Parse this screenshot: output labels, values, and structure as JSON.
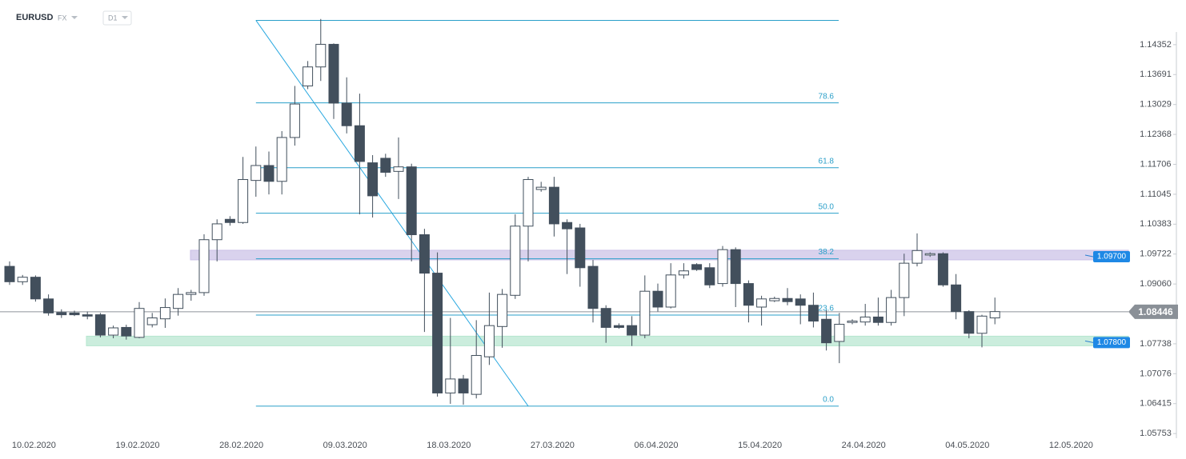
{
  "header": {
    "symbol": "EURUSD",
    "market": "FX",
    "interval": "D1"
  },
  "chart_data": {
    "type": "candlestick",
    "categories": [
      null,
      null,
      "10.02.2020",
      null,
      null,
      null,
      null,
      null,
      null,
      null,
      "19.02.2020",
      null,
      null,
      null,
      null,
      null,
      null,
      null,
      "28.02.2020",
      null,
      null,
      null,
      null,
      null,
      null,
      null,
      "09.03.2020",
      null,
      null,
      null,
      null,
      null,
      null,
      null,
      "18.03.2020",
      null,
      null,
      null,
      null,
      null,
      null,
      null,
      "27.03.2020",
      null,
      null,
      null,
      null,
      null,
      null,
      null,
      "06.04.2020",
      null,
      null,
      null,
      null,
      null,
      null,
      null,
      "15.04.2020",
      null,
      null,
      null,
      null,
      null,
      null,
      null,
      "24.04.2020",
      null,
      null,
      null,
      null,
      null,
      null,
      null,
      "04.05.2020",
      null,
      null,
      null,
      null,
      null,
      null,
      null,
      "12.05.2020"
    ],
    "open": [
      1.0945,
      1.0911,
      1.0921,
      1.0873,
      1.0843,
      1.0842,
      1.0838,
      1.0838,
      1.0793,
      1.081,
      1.0788,
      1.0816,
      1.0829,
      1.0852,
      1.0883,
      1.0887,
      1.1004,
      1.1049,
      1.1042,
      1.1135,
      1.1168,
      1.1133,
      1.123,
      1.1344,
      1.1386,
      1.1436,
      1.1306,
      1.1256,
      1.1174,
      1.1184,
      1.1155,
      1.1165,
      1.1015,
      1.093,
      1.0665,
      1.0696,
      1.0662,
      1.0745,
      1.0812,
      1.0881,
      1.1034,
      1.1115,
      1.112,
      1.1042,
      1.103,
      1.0945,
      1.0852,
      1.0814,
      1.0814,
      1.0793,
      1.089,
      1.0855,
      1.0926,
      1.0949,
      1.0942,
      1.0907,
      1.0982,
      1.0907,
      1.0855,
      1.0869,
      1.0874,
      1.0873,
      1.0859,
      1.0828,
      1.0779,
      1.0821,
      1.0822,
      1.0833,
      1.0821,
      1.0876,
      1.0952,
      1.097,
      1.0973,
      1.0904,
      1.0845,
      1.0797,
      1.0831,
      null,
      null,
      null,
      null,
      null,
      null
    ],
    "high": [
      1.0956,
      1.0926,
      1.0925,
      1.0883,
      1.085,
      1.0847,
      1.0845,
      1.0842,
      1.0814,
      1.0816,
      1.0866,
      1.0842,
      1.0874,
      1.0897,
      1.0893,
      1.1016,
      1.1049,
      1.1056,
      1.1187,
      1.121,
      1.1199,
      1.1244,
      1.1344,
      1.1399,
      1.1492,
      1.1438,
      1.1363,
      1.1327,
      1.1191,
      1.1194,
      1.123,
      1.1172,
      1.1028,
      1.0976,
      1.0831,
      1.0705,
      1.0826,
      1.0887,
      1.0895,
      1.106,
      1.1143,
      1.1132,
      1.1143,
      1.1049,
      1.1039,
      1.0959,
      1.0859,
      1.0819,
      1.0835,
      1.0925,
      1.0907,
      1.0952,
      1.0952,
      1.0952,
      1.0952,
      1.099,
      1.0987,
      1.0914,
      1.088,
      1.0878,
      1.0897,
      1.0883,
      1.0887,
      1.0848,
      1.0842,
      1.0828,
      1.0862,
      1.0876,
      1.0893,
      1.0973,
      1.1018,
      1.0976,
      1.0976,
      1.0928,
      1.0848,
      1.0838,
      1.0876,
      null,
      null,
      null,
      null,
      null,
      null
    ],
    "low": [
      1.0904,
      1.0904,
      1.0867,
      1.0836,
      1.0831,
      1.0835,
      1.0828,
      1.0788,
      1.0786,
      1.0783,
      1.0786,
      1.081,
      1.0809,
      1.0836,
      1.0869,
      1.088,
      1.0956,
      1.1035,
      1.1039,
      1.1099,
      1.1104,
      1.1104,
      1.1212,
      1.1337,
      1.1355,
      1.1271,
      1.1239,
      1.106,
      1.1053,
      1.1143,
      1.1094,
      1.0956,
      1.08,
      1.0657,
      1.0641,
      1.0639,
      1.0653,
      1.0727,
      1.0765,
      1.0873,
      1.0956,
      1.111,
      1.1011,
      1.0928,
      1.09,
      1.0821,
      1.0776,
      1.0807,
      1.0769,
      1.0786,
      1.0845,
      1.0852,
      1.0918,
      1.0935,
      1.0897,
      1.09,
      1.0855,
      1.0821,
      1.0814,
      1.0866,
      1.0859,
      1.0817,
      1.081,
      1.0759,
      1.0731,
      1.0817,
      1.0814,
      1.0814,
      1.0814,
      1.0835,
      1.0945,
      1.0966,
      1.09,
      1.0828,
      1.0786,
      1.0766,
      1.0817,
      null,
      null,
      null,
      null,
      null,
      null
    ],
    "close": [
      1.0911,
      1.0921,
      1.0873,
      1.0842,
      1.0838,
      1.0838,
      1.0835,
      1.0793,
      1.0809,
      1.0791,
      1.0852,
      1.0831,
      1.0854,
      1.0883,
      1.0887,
      1.1004,
      1.1039,
      1.1042,
      1.1137,
      1.1168,
      1.1133,
      1.123,
      1.1304,
      1.1386,
      1.1436,
      1.1306,
      1.1256,
      1.1177,
      1.1101,
      1.1153,
      1.1165,
      1.1015,
      1.093,
      1.0665,
      1.0696,
      1.0665,
      1.0748,
      1.0814,
      1.0883,
      1.1034,
      1.1137,
      1.112,
      1.1039,
      1.1028,
      1.0942,
      1.0852,
      1.081,
      1.081,
      1.0793,
      1.089,
      1.0855,
      1.0926,
      1.0935,
      1.0938,
      1.0904,
      1.0982,
      1.0907,
      1.0859,
      1.0873,
      1.0874,
      1.0867,
      1.0859,
      1.0824,
      1.0776,
      1.0817,
      1.0824,
      1.0833,
      1.0821,
      1.0876,
      1.0952,
      1.098,
      1.0973,
      1.0904,
      1.0845,
      1.0797,
      1.0835,
      1.0845,
      null,
      null,
      null,
      null,
      null,
      null
    ],
    "up_color": "#ffffff",
    "down_color": "#424f5c",
    "ylim": [
      1.0565,
      1.1534
    ],
    "yticks": [
      1.14352,
      1.13691,
      1.13029,
      1.12368,
      1.11706,
      1.11045,
      1.10383,
      1.09722,
      {
        "value": 1.0906,
        "label": "1.09060"
      },
      1.07738,
      1.07076,
      1.06415,
      1.05753
    ],
    "current_price": 1.08446,
    "fibonacci": {
      "high": 1.1489,
      "low": 1.0636,
      "color": "#2a9fc9",
      "levels": [
        78.6,
        61.8,
        {
          "value": 50,
          "label": "50.0"
        },
        38.2,
        23.6,
        {
          "value": 0,
          "label": "0.0"
        }
      ]
    },
    "zones": [
      {
        "value": 1.097,
        "label": "1.09700",
        "color": "#c9bfe6"
      },
      {
        "value": 1.078,
        "label": "1.07800",
        "color": "#b5e6cf"
      }
    ]
  }
}
